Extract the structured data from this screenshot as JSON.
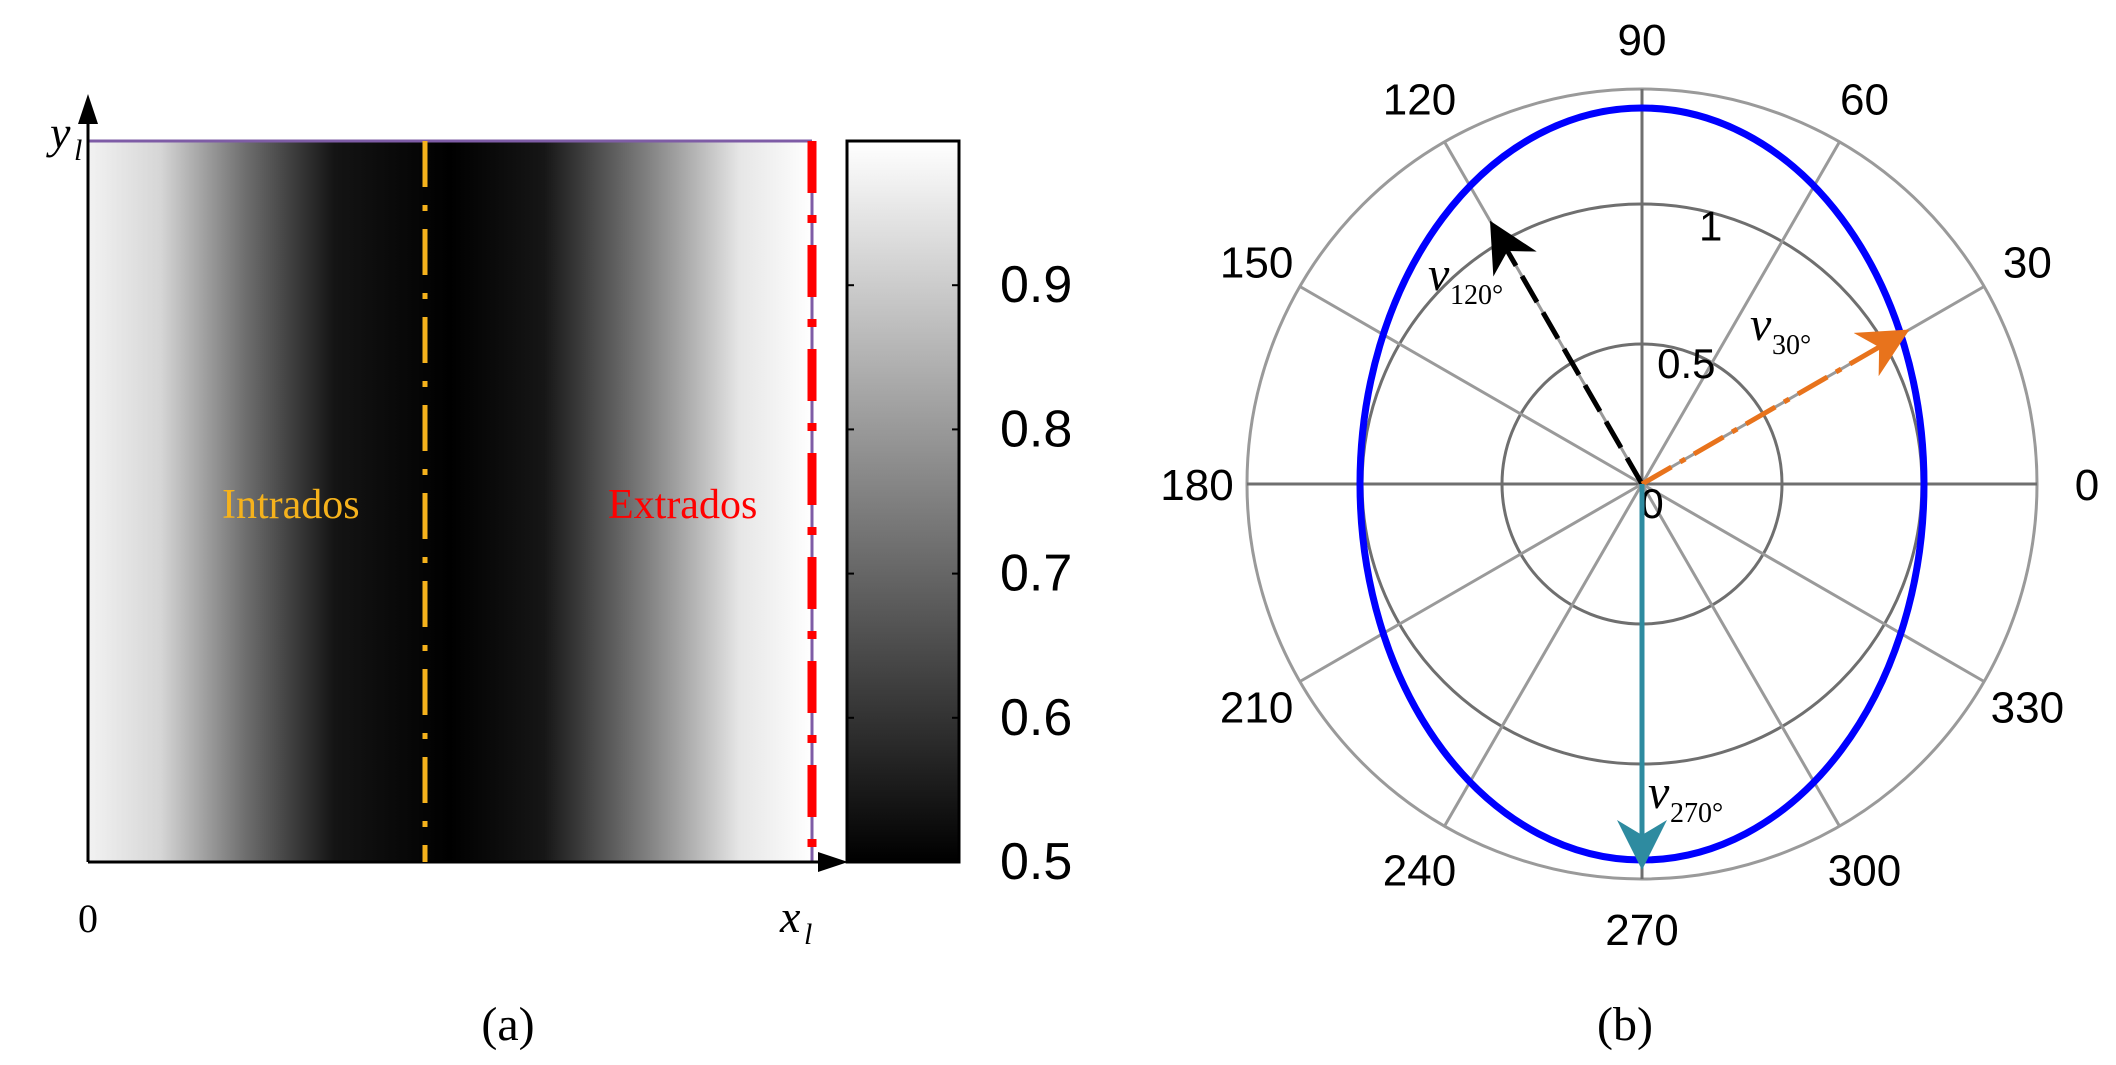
{
  "panel_a": {
    "y_axis_label": "y",
    "y_axis_sub": "l",
    "x_axis_label": "x",
    "x_axis_sub": "l",
    "origin_label": "0",
    "intrados_label": "Intrados",
    "extrados_label": "Extrados",
    "caption": "(a)",
    "colorbar": {
      "ticks": [
        "0.9",
        "0.8",
        "0.7",
        "0.6",
        "0.5"
      ],
      "tick_values": [
        0.9,
        0.8,
        0.7,
        0.6,
        0.5
      ],
      "range": [
        0.5,
        1.0
      ]
    },
    "colors": {
      "intrados": "#f5b21c",
      "extrados": "#ff0000",
      "top_edge": "#7e5ca6"
    }
  },
  "panel_b": {
    "caption": "(b)",
    "angle_labels": [
      "0",
      "30",
      "60",
      "90",
      "120",
      "150",
      "180",
      "210",
      "240",
      "270",
      "300",
      "330"
    ],
    "radial_labels": [
      "0",
      "0.5",
      "1"
    ],
    "vectors": [
      {
        "symbol": "v",
        "sub": "120°",
        "angle": 120,
        "color": "#000000"
      },
      {
        "symbol": "v",
        "sub": "30°",
        "angle": 30,
        "color": "#e8731c"
      },
      {
        "symbol": "v",
        "sub": "270°",
        "angle": 270,
        "color": "#2e8ba0"
      }
    ],
    "ellipse_color": "#0000ff"
  }
}
